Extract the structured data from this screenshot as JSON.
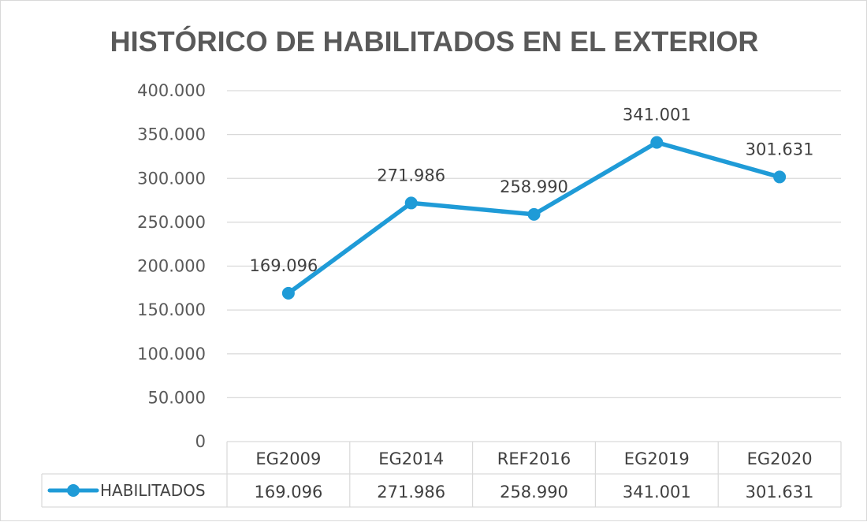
{
  "chart_data": {
    "type": "line",
    "title": "HISTÓRICO DE HABILITADOS EN EL EXTERIOR",
    "categories": [
      "EG2009",
      "EG2014",
      "REF2016",
      "EG2019",
      "EG2020"
    ],
    "series": [
      {
        "name": "HABILITADOS",
        "values": [
          169096,
          271986,
          258990,
          341001,
          301631
        ],
        "labels": [
          "169.096",
          "271.986",
          "258.990",
          "341.001",
          "301.631"
        ],
        "color": "#1f9bd7"
      }
    ],
    "ylim": [
      0,
      400000
    ],
    "yticks": [
      "0",
      "50.000",
      "100.000",
      "150.000",
      "200.000",
      "250.000",
      "300.000",
      "350.000",
      "400.000"
    ],
    "grid": true,
    "data_table": true,
    "legend": "data-table-left",
    "gridline_color": "#d9d9d9",
    "text_color": "#595959"
  }
}
